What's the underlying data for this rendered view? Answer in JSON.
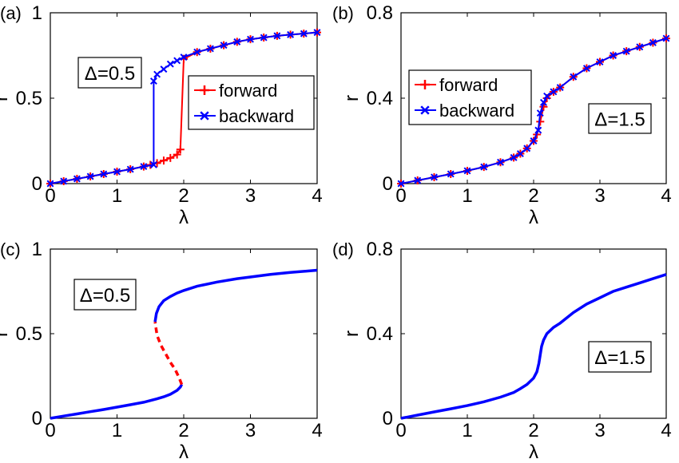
{
  "chart_data": [
    {
      "panel_label": "(a)",
      "type": "line",
      "xlabel": "λ",
      "ylabel": "r",
      "xlim": [
        0,
        4
      ],
      "ylim": [
        0,
        1
      ],
      "xticks": [
        "0",
        "1",
        "2",
        "3",
        "4"
      ],
      "yticks": [
        "0",
        "0.5",
        "1"
      ],
      "annotation": "Δ=0.5",
      "legend": "right-middle",
      "series": [
        {
          "name": "forward",
          "color": "#ff0000",
          "marker": "plus",
          "x": [
            0,
            0.2,
            0.4,
            0.6,
            0.8,
            1.0,
            1.2,
            1.4,
            1.5,
            1.6,
            1.7,
            1.8,
            1.9,
            1.95,
            2.0,
            2.2,
            2.4,
            2.6,
            2.8,
            3.0,
            3.2,
            3.4,
            3.6,
            3.8,
            4.0
          ],
          "y": [
            0,
            0.014,
            0.028,
            0.042,
            0.056,
            0.07,
            0.084,
            0.1,
            0.11,
            0.12,
            0.135,
            0.15,
            0.17,
            0.2,
            0.73,
            0.77,
            0.79,
            0.81,
            0.83,
            0.845,
            0.855,
            0.865,
            0.872,
            0.878,
            0.885
          ]
        },
        {
          "name": "backward",
          "color": "#0000ff",
          "marker": "x",
          "x": [
            4.0,
            3.8,
            3.6,
            3.4,
            3.2,
            3.0,
            2.8,
            2.6,
            2.4,
            2.2,
            2.0,
            1.9,
            1.8,
            1.7,
            1.6,
            1.55,
            1.55,
            1.4,
            1.2,
            1.0,
            0.8,
            0.6,
            0.4,
            0.2,
            0
          ],
          "y": [
            0.885,
            0.878,
            0.872,
            0.865,
            0.855,
            0.845,
            0.83,
            0.81,
            0.79,
            0.77,
            0.74,
            0.72,
            0.7,
            0.67,
            0.64,
            0.6,
            0.11,
            0.1,
            0.084,
            0.07,
            0.056,
            0.042,
            0.028,
            0.014,
            0
          ]
        }
      ]
    },
    {
      "panel_label": "(b)",
      "type": "line",
      "xlabel": "λ",
      "ylabel": "r",
      "xlim": [
        0,
        4
      ],
      "ylim": [
        0,
        0.8
      ],
      "xticks": [
        "0",
        "1",
        "2",
        "3",
        "4"
      ],
      "yticks": [
        "0",
        "0.4",
        "0.8"
      ],
      "annotation": "Δ=1.5",
      "legend": "left-middle",
      "series": [
        {
          "name": "forward",
          "color": "#ff0000",
          "marker": "plus",
          "x": [
            0,
            0.25,
            0.5,
            0.75,
            1.0,
            1.25,
            1.5,
            1.7,
            1.8,
            1.9,
            2.0,
            2.05,
            2.1,
            2.15,
            2.2,
            2.3,
            2.4,
            2.6,
            2.8,
            3.0,
            3.2,
            3.4,
            3.6,
            3.8,
            4.0
          ],
          "y": [
            0,
            0.015,
            0.03,
            0.045,
            0.06,
            0.078,
            0.1,
            0.122,
            0.14,
            0.165,
            0.2,
            0.23,
            0.29,
            0.36,
            0.4,
            0.43,
            0.45,
            0.5,
            0.54,
            0.57,
            0.6,
            0.62,
            0.64,
            0.66,
            0.68
          ]
        },
        {
          "name": "backward",
          "color": "#0000ff",
          "marker": "x",
          "x": [
            4.0,
            3.8,
            3.6,
            3.4,
            3.2,
            3.0,
            2.8,
            2.6,
            2.4,
            2.3,
            2.2,
            2.15,
            2.1,
            2.07,
            2.0,
            1.9,
            1.8,
            1.7,
            1.5,
            1.25,
            1.0,
            0.75,
            0.5,
            0.25,
            0
          ],
          "y": [
            0.68,
            0.66,
            0.64,
            0.62,
            0.6,
            0.57,
            0.54,
            0.5,
            0.45,
            0.43,
            0.41,
            0.38,
            0.33,
            0.25,
            0.2,
            0.165,
            0.14,
            0.122,
            0.1,
            0.078,
            0.06,
            0.045,
            0.03,
            0.015,
            0
          ]
        }
      ]
    },
    {
      "panel_label": "(c)",
      "type": "line",
      "xlabel": "λ",
      "ylabel": "r",
      "xlim": [
        0,
        4
      ],
      "ylim": [
        0,
        1
      ],
      "xticks": [
        "0",
        "1",
        "2",
        "3",
        "4"
      ],
      "yticks": [
        "0",
        "0.5",
        "1"
      ],
      "annotation": "Δ=0.5",
      "series": [
        {
          "color": "#0000ff",
          "style": "solid",
          "x": [
            0,
            0.2,
            0.4,
            0.6,
            0.8,
            1.0,
            1.2,
            1.4,
            1.6,
            1.7,
            1.8,
            1.9,
            1.95,
            1.97
          ],
          "y": [
            0,
            0.013,
            0.026,
            0.039,
            0.052,
            0.066,
            0.08,
            0.095,
            0.115,
            0.127,
            0.142,
            0.165,
            0.185,
            0.2
          ]
        },
        {
          "color": "#ff0000",
          "style": "dashed",
          "x": [
            1.97,
            1.93,
            1.87,
            1.8,
            1.73,
            1.66,
            1.6,
            1.57
          ],
          "y": [
            0.2,
            0.24,
            0.29,
            0.33,
            0.38,
            0.43,
            0.49,
            0.57
          ]
        },
        {
          "color": "#0000ff",
          "style": "solid",
          "x": [
            1.57,
            1.59,
            1.63,
            1.7,
            1.8,
            1.9,
            2.0,
            2.2,
            2.5,
            2.8,
            3.0,
            3.3,
            3.6,
            4.0
          ],
          "y": [
            0.57,
            0.62,
            0.66,
            0.695,
            0.72,
            0.74,
            0.755,
            0.78,
            0.805,
            0.825,
            0.835,
            0.85,
            0.862,
            0.875
          ]
        }
      ]
    },
    {
      "panel_label": "(d)",
      "type": "line",
      "xlabel": "λ",
      "ylabel": "r",
      "xlim": [
        0,
        4
      ],
      "ylim": [
        0,
        0.8
      ],
      "xticks": [
        "0",
        "1",
        "2",
        "3",
        "4"
      ],
      "yticks": [
        "0",
        "0.4",
        "0.8"
      ],
      "annotation": "Δ=1.5",
      "series": [
        {
          "color": "#0000ff",
          "style": "solid",
          "x": [
            0,
            0.25,
            0.5,
            0.75,
            1.0,
            1.25,
            1.5,
            1.7,
            1.8,
            1.9,
            2.0,
            2.05,
            2.08,
            2.1,
            2.12,
            2.15,
            2.2,
            2.3,
            2.4,
            2.6,
            2.8,
            3.0,
            3.2,
            3.4,
            3.6,
            3.8,
            4.0
          ],
          "y": [
            0,
            0.015,
            0.03,
            0.045,
            0.06,
            0.078,
            0.1,
            0.122,
            0.14,
            0.16,
            0.19,
            0.22,
            0.26,
            0.3,
            0.34,
            0.37,
            0.4,
            0.43,
            0.45,
            0.5,
            0.54,
            0.57,
            0.6,
            0.62,
            0.64,
            0.66,
            0.68
          ]
        }
      ]
    }
  ]
}
